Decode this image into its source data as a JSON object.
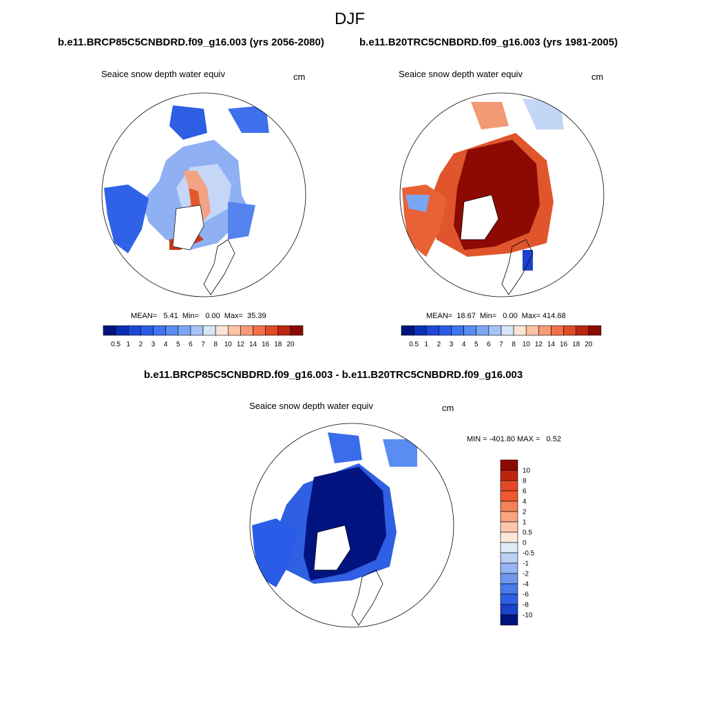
{
  "title": "DJF",
  "header": {
    "left_case": "b.e11.BRCP85C5CNBDRD.f09_g16.003 (yrs 2056-2080)",
    "right_case": "b.e11.B20TRC5CNBDRD.f09_g16.003 (yrs 1981-2005)",
    "diff_case": "b.e11.BRCP85C5CNBDRD.f09_g16.003 - b.e11.B20TRC5CNBDRD.f09_g16.003"
  },
  "panels": {
    "left": {
      "variable": "Seaice snow depth water equiv",
      "units": "cm",
      "stats": "MEAN=   5.41  Min=   0.00  Max=  35.39"
    },
    "right": {
      "variable": "Seaice snow depth water equiv",
      "units": "cm",
      "stats": "MEAN=  18.67  Min=   0.00  Max= 414.68"
    },
    "diff": {
      "variable": "Seaice snow depth water equiv",
      "units": "cm",
      "stats": "MIN = -401.80 MAX =   0.52"
    }
  },
  "colorbars": {
    "abs": {
      "labels": [
        "0.5",
        "1",
        "2",
        "3",
        "4",
        "5",
        "6",
        "7",
        "8",
        "10",
        "12",
        "14",
        "16",
        "18",
        "20"
      ],
      "colors": [
        "#00137f",
        "#0a2fb5",
        "#1d47d6",
        "#2a5ce8",
        "#3f74f0",
        "#5a8df2",
        "#7aa7f5",
        "#a5c3f7",
        "#d8e6f8",
        "#fde5d5",
        "#fbc2a4",
        "#f79b75",
        "#f1704a",
        "#e04a25",
        "#bd2510",
        "#8c0a03"
      ]
    },
    "diff": {
      "labels": [
        "10",
        "8",
        "6",
        "4",
        "2",
        "1",
        "0.5",
        "0",
        "-0.5",
        "-1",
        "-2",
        "-4",
        "-6",
        "-8",
        "-10"
      ],
      "colors": [
        "#8c0a03",
        "#bd2510",
        "#e04a25",
        "#f1582e",
        "#f58156",
        "#f9a37f",
        "#fcc6ab",
        "#fde7d9",
        "#dfe9f7",
        "#bcd0f4",
        "#97b5f2",
        "#6f97ef",
        "#4a79eb",
        "#2f5fe2",
        "#1b43cc",
        "#00137f"
      ]
    }
  }
}
